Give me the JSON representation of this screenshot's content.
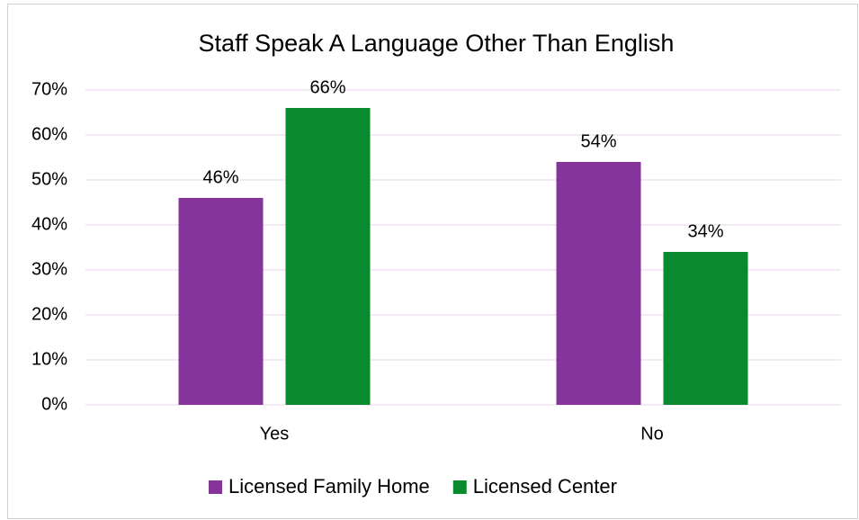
{
  "chart_data": {
    "type": "bar",
    "title": "Staff Speak A Language Other Than English",
    "categories": [
      "Yes",
      "No"
    ],
    "series": [
      {
        "name": "Licensed Family Home",
        "color": "#84349b",
        "values": [
          46,
          54
        ],
        "value_labels": [
          "46%",
          "54%"
        ]
      },
      {
        "name": "Licensed Center",
        "color": "#0a8a2e",
        "values": [
          66,
          34
        ],
        "value_labels": [
          "66%",
          "34%"
        ]
      }
    ],
    "ylim": [
      0,
      70
    ],
    "yticks": [
      {
        "value": 0,
        "label": "0%"
      },
      {
        "value": 10,
        "label": "10%"
      },
      {
        "value": 20,
        "label": "20%"
      },
      {
        "value": 30,
        "label": "30%"
      },
      {
        "value": 40,
        "label": "40%"
      },
      {
        "value": 50,
        "label": "50%"
      },
      {
        "value": 60,
        "label": "60%"
      },
      {
        "value": 70,
        "label": "70%"
      }
    ],
    "grid": true,
    "legend": "bottom"
  }
}
